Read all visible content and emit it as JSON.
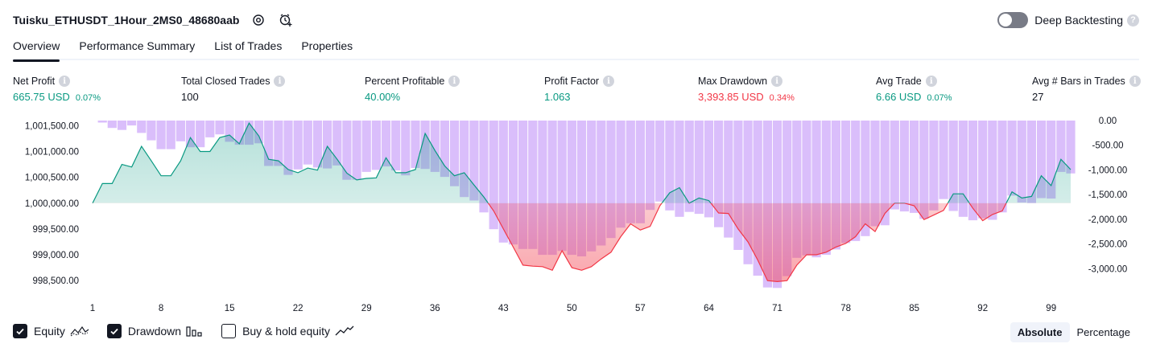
{
  "header": {
    "strategy_title": "Tuisku_ETHUSDT_1Hour_2MS0_48680aab",
    "icons": [
      "settings-icon",
      "add-alert-icon"
    ],
    "deep_backtesting_label": "Deep Backtesting",
    "deep_backtesting_on": false
  },
  "tabs": [
    {
      "label": "Overview",
      "active": true
    },
    {
      "label": "Performance Summary",
      "active": false
    },
    {
      "label": "List of Trades",
      "active": false
    },
    {
      "label": "Properties",
      "active": false
    }
  ],
  "metrics": [
    {
      "label": "Net Profit",
      "value": "665.75 USD",
      "pct": "0.07%",
      "color": "#089981"
    },
    {
      "label": "Total Closed Trades",
      "value": "100",
      "pct": "",
      "color": "#131722"
    },
    {
      "label": "Percent Profitable",
      "value": "40.00%",
      "pct": "",
      "color": "#089981"
    },
    {
      "label": "Profit Factor",
      "value": "1.063",
      "pct": "",
      "color": "#089981"
    },
    {
      "label": "Max Drawdown",
      "value": "3,393.85 USD",
      "pct": "0.34%",
      "color": "#f23645"
    },
    {
      "label": "Avg Trade",
      "value": "6.66 USD",
      "pct": "0.07%",
      "color": "#089981"
    },
    {
      "label": "Avg # Bars in Trades",
      "value": "27",
      "pct": "",
      "color": "#131722"
    }
  ],
  "legend": [
    {
      "label": "Equity",
      "checked": true,
      "icon": "equity-line-icon"
    },
    {
      "label": "Drawdown",
      "checked": true,
      "icon": "drawdown-bars-icon"
    },
    {
      "label": "Buy & hold equity",
      "checked": false,
      "icon": "buy-hold-line-icon"
    }
  ],
  "mode": {
    "absolute_label": "Absolute",
    "percentage_label": "Percentage",
    "active": "Absolute"
  },
  "colors": {
    "profit": "#089981",
    "loss": "#f23645",
    "drawdown_bar": "#d7b8fb",
    "text": "#131722"
  },
  "chart_data": {
    "type": "line",
    "x_ticks": [
      "1",
      "8",
      "15",
      "22",
      "29",
      "36",
      "43",
      "50",
      "57",
      "64",
      "71",
      "78",
      "85",
      "92",
      "99"
    ],
    "left_axis": {
      "ticks": [
        "1,001,500.00",
        "1,001,000.00",
        "1,000,500.00",
        "1,000,000.00",
        "999,500.00",
        "999,000.00",
        "998,500.00"
      ],
      "range": [
        998300,
        1001600
      ]
    },
    "right_axis": {
      "ticks": [
        "0.00",
        "-500.00",
        "-1,000.00",
        "-1,500.00",
        "-2,000.00",
        "-2,500.00",
        "-3,000.00"
      ],
      "range": [
        -3450,
        0
      ]
    },
    "baseline_equity": 1000000,
    "equity": [
      1000000,
      1000380,
      1000380,
      1000750,
      1000700,
      1001100,
      1000820,
      1000530,
      1000530,
      1000820,
      1001270,
      1001000,
      1001000,
      1001270,
      1001320,
      1001150,
      1001550,
      1001300,
      1000850,
      1000820,
      1000650,
      1000590,
      1000680,
      1000640,
      1001100,
      1000850,
      1000580,
      1000450,
      1000480,
      1000490,
      1000880,
      1000590,
      1000590,
      1000650,
      1001350,
      1001020,
      1000720,
      1000530,
      1000590,
      1000350,
      1000120,
      999850,
      999500,
      999150,
      998800,
      998780,
      998770,
      998700,
      999080,
      998750,
      998700,
      998770,
      998920,
      999050,
      999350,
      999600,
      999480,
      999550,
      999950,
      1000200,
      1000300,
      1000000,
      1000100,
      1000050,
      999810,
      999800,
      999500,
      999250,
      998900,
      998500,
      998480,
      998500,
      998800,
      999000,
      999000,
      999050,
      999150,
      999220,
      999350,
      999600,
      999450,
      999800,
      1000000,
      1000000,
      999950,
      999680,
      999770,
      999860,
      1000180,
      1000180,
      999900,
      999660,
      999780,
      999850,
      1000220,
      1000100,
      1000130,
      1000530,
      1000340,
      1000850,
      1000650
    ],
    "drawdown": [
      0,
      -40,
      -150,
      -190,
      -100,
      -250,
      -400,
      -580,
      -580,
      -420,
      -540,
      -540,
      -340,
      -280,
      -430,
      -490,
      -490,
      -460,
      -920,
      -920,
      -1100,
      -990,
      -890,
      -950,
      -970,
      -910,
      -1200,
      -1200,
      -1040,
      -1000,
      -930,
      -1010,
      -1110,
      -960,
      -980,
      -1040,
      -1140,
      -1330,
      -1550,
      -1620,
      -1860,
      -2200,
      -2470,
      -2510,
      -2600,
      -2600,
      -2720,
      -2720,
      -2640,
      -2720,
      -2750,
      -2650,
      -2530,
      -2380,
      -2170,
      -2080,
      -2080,
      -1810,
      -1640,
      -1820,
      -1950,
      -1850,
      -1890,
      -1960,
      -2160,
      -2370,
      -2620,
      -2910,
      -3140,
      -3380,
      -3390,
      -3150,
      -2780,
      -2730,
      -2770,
      -2720,
      -2610,
      -2480,
      -2440,
      -2340,
      -2140,
      -2120,
      -1800,
      -1840,
      -1870,
      -1990,
      -1820,
      -1590,
      -1830,
      -1950,
      -2020,
      -1980,
      -2010,
      -1860,
      -1520,
      -1660,
      -1670,
      -1570,
      -1580,
      -1040,
      -1070
    ]
  }
}
